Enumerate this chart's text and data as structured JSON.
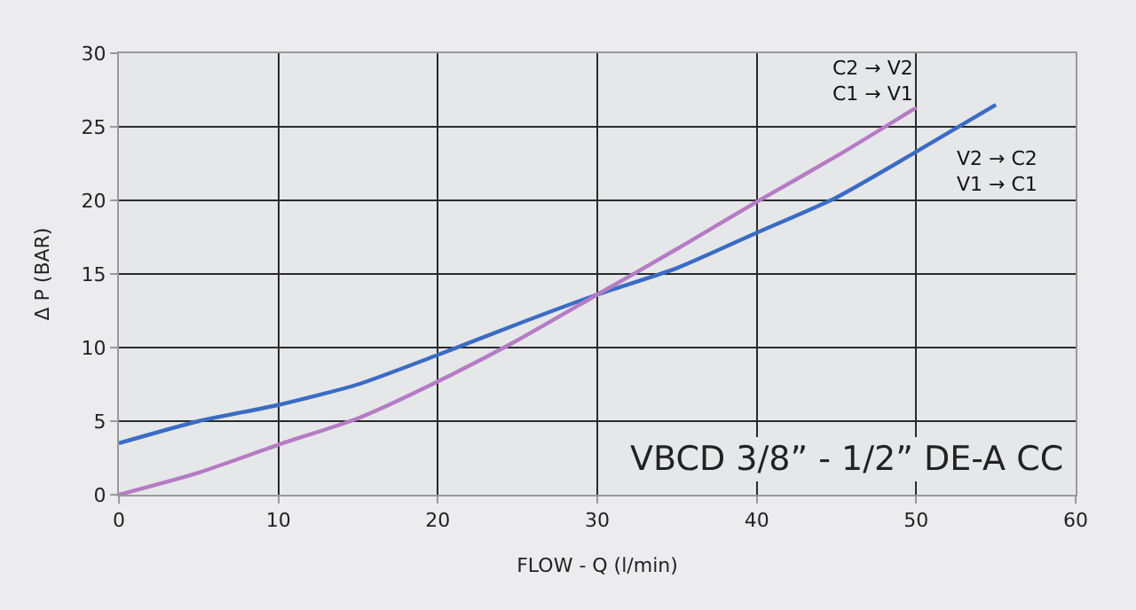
{
  "chart_data": {
    "type": "line",
    "xlabel": "FLOW - Q (l/min)",
    "ylabel": "Δ P (BAR)",
    "xlim": [
      0,
      60
    ],
    "xticks": [
      0,
      10,
      20,
      30,
      40,
      50,
      60
    ],
    "ylim": [
      0,
      30
    ],
    "yticks": [
      0,
      5,
      10,
      15,
      20,
      25,
      30
    ],
    "grid": true,
    "marker": "none",
    "line_style": "solid",
    "series": [
      {
        "color": "#3b6cc4",
        "x": [
          0,
          5,
          10,
          15,
          20,
          25,
          30,
          35,
          40,
          45,
          50,
          55
        ],
        "values": [
          3.5,
          5.0,
          6.1,
          7.5,
          9.5,
          11.6,
          13.6,
          15.4,
          17.8,
          20.2,
          23.3,
          26.5
        ]
      },
      {
        "color": "#b57cc4",
        "x": [
          0,
          5,
          10,
          15,
          20,
          25,
          30,
          35,
          40,
          45,
          50
        ],
        "values": [
          0,
          1.5,
          3.4,
          5.2,
          7.7,
          10.5,
          13.6,
          16.7,
          19.9,
          23.0,
          26.3
        ]
      }
    ],
    "annotations": [
      {
        "text": "C2 → V2\nC1 → V1",
        "x": 50,
        "y": 26.3
      },
      {
        "text": "V2 → C2\nV1 → C1",
        "x": 55,
        "y": 26.5
      },
      "VBCD 3/8” - 1/2” DE-A CC"
    ]
  }
}
